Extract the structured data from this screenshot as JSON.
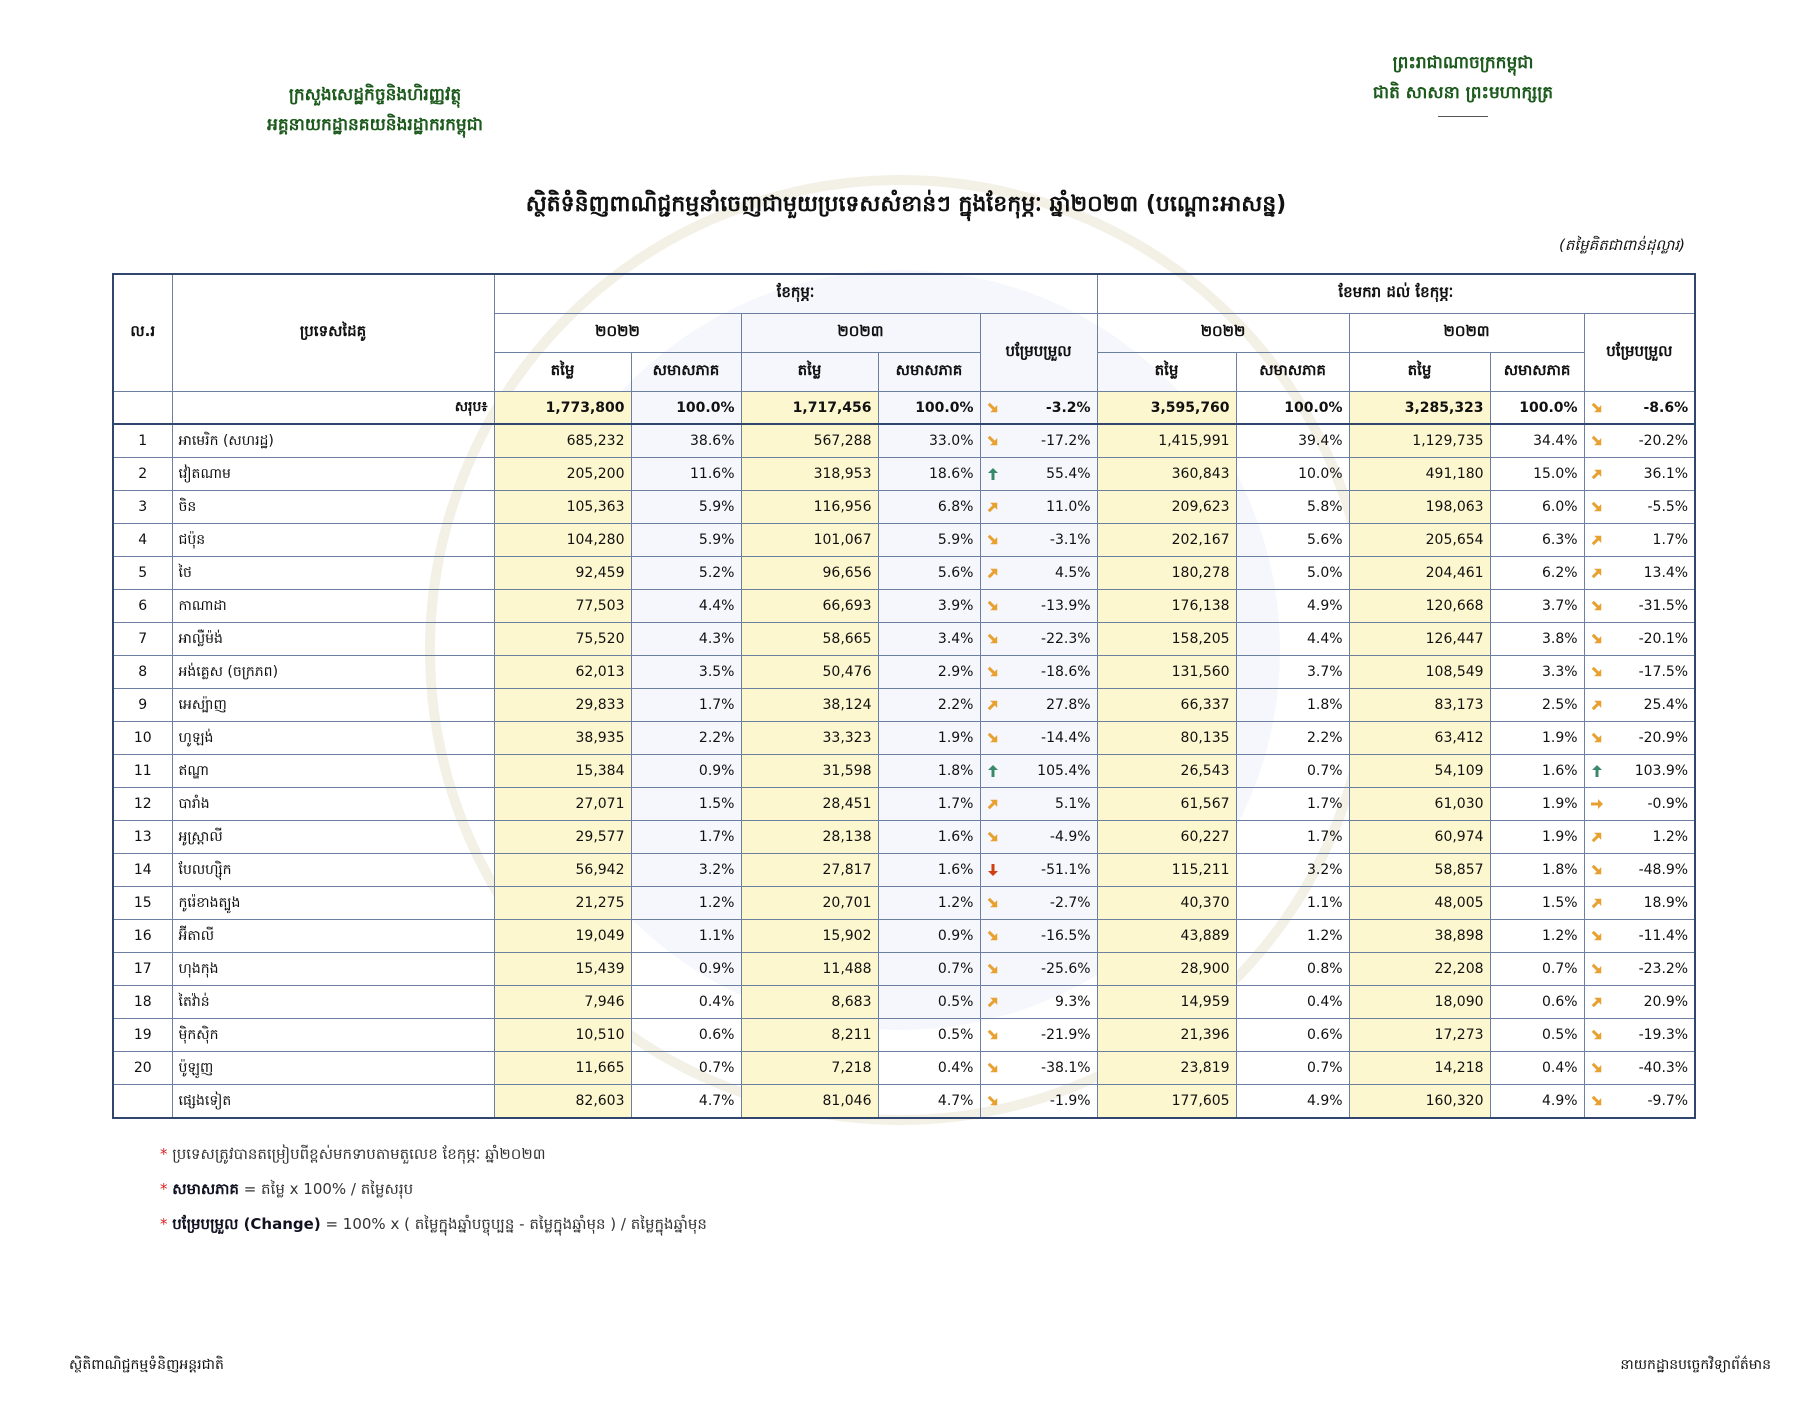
{
  "header": {
    "ministry": [
      "ក្រសួងសេដ្ឋកិច្ចនិងហិរញ្ញវត្ថុ",
      "អគ្គនាយកដ្ឋានគយនិងរដ្ឋាករកម្ពុជា"
    ],
    "kingdom": [
      "ព្រះរាជាណាចក្រកម្ពុជា",
      "ជាតិ សាសនា ព្រះមហាក្សត្រ"
    ]
  },
  "title": "ស្ថិតិទំនិញពាណិជ្ជកម្មនាំចេញជាមួយប្រទេសសំខាន់ៗ ក្នុងខែកុម្ភៈ ឆ្នាំ២០២៣ (បណ្ដោះអាសន្ន)",
  "unit": "(តម្លៃគិតជាពាន់ដុល្លារ)",
  "table": {
    "columns": {
      "no": "ល.រ",
      "country": "ប្រទេសដៃគូ",
      "month": "ខែកុម្ភៈ",
      "ytd": "ខែមករា ដល់ ខែកុម្ភៈ",
      "year1": "២០២២",
      "year2": "២០២៣",
      "change": "បម្រែបម្រួល",
      "value": "តម្លៃ",
      "share": "សមាសភាគ"
    },
    "total": {
      "label": "សរុប៖",
      "cells": [
        "1,773,800",
        "100.0%",
        "1,717,456",
        "100.0%",
        "-3.2%",
        "3,595,760",
        "100.0%",
        "3,285,323",
        "100.0%",
        "-8.6%"
      ]
    },
    "rows": [
      {
        "no": "1",
        "country": "អាមេរិក (សហរដ្ឋ)",
        "cells": [
          "685,232",
          "38.6%",
          "567,288",
          "33.0%",
          "-17.2%",
          "1,415,991",
          "39.4%",
          "1,129,735",
          "34.4%",
          "-20.2%"
        ]
      },
      {
        "no": "2",
        "country": "វៀតណាម",
        "cells": [
          "205,200",
          "11.6%",
          "318,953",
          "18.6%",
          "55.4%",
          "360,843",
          "10.0%",
          "491,180",
          "15.0%",
          "36.1%"
        ]
      },
      {
        "no": "3",
        "country": "ចិន",
        "cells": [
          "105,363",
          "5.9%",
          "116,956",
          "6.8%",
          "11.0%",
          "209,623",
          "5.8%",
          "198,063",
          "6.0%",
          "-5.5%"
        ]
      },
      {
        "no": "4",
        "country": "ជប៉ុន",
        "cells": [
          "104,280",
          "5.9%",
          "101,067",
          "5.9%",
          "-3.1%",
          "202,167",
          "5.6%",
          "205,654",
          "6.3%",
          "1.7%"
        ]
      },
      {
        "no": "5",
        "country": "ថៃ",
        "cells": [
          "92,459",
          "5.2%",
          "96,656",
          "5.6%",
          "4.5%",
          "180,278",
          "5.0%",
          "204,461",
          "6.2%",
          "13.4%"
        ]
      },
      {
        "no": "6",
        "country": "កាណាដា",
        "cells": [
          "77,503",
          "4.4%",
          "66,693",
          "3.9%",
          "-13.9%",
          "176,138",
          "4.9%",
          "120,668",
          "3.7%",
          "-31.5%"
        ]
      },
      {
        "no": "7",
        "country": "អាល្លឺម៉ង់",
        "cells": [
          "75,520",
          "4.3%",
          "58,665",
          "3.4%",
          "-22.3%",
          "158,205",
          "4.4%",
          "126,447",
          "3.8%",
          "-20.1%"
        ]
      },
      {
        "no": "8",
        "country": "អង់គ្លេស (ចក្រភព)",
        "cells": [
          "62,013",
          "3.5%",
          "50,476",
          "2.9%",
          "-18.6%",
          "131,560",
          "3.7%",
          "108,549",
          "3.3%",
          "-17.5%"
        ]
      },
      {
        "no": "9",
        "country": "អេស្ប៉ាញ",
        "cells": [
          "29,833",
          "1.7%",
          "38,124",
          "2.2%",
          "27.8%",
          "66,337",
          "1.8%",
          "83,173",
          "2.5%",
          "25.4%"
        ]
      },
      {
        "no": "10",
        "country": "ហូឡង់",
        "cells": [
          "38,935",
          "2.2%",
          "33,323",
          "1.9%",
          "-14.4%",
          "80,135",
          "2.2%",
          "63,412",
          "1.9%",
          "-20.9%"
        ]
      },
      {
        "no": "11",
        "country": "ឥណ្ឌា",
        "cells": [
          "15,384",
          "0.9%",
          "31,598",
          "1.8%",
          "105.4%",
          "26,543",
          "0.7%",
          "54,109",
          "1.6%",
          "103.9%"
        ]
      },
      {
        "no": "12",
        "country": "បារាំង",
        "cells": [
          "27,071",
          "1.5%",
          "28,451",
          "1.7%",
          "5.1%",
          "61,567",
          "1.7%",
          "61,030",
          "1.9%",
          "-0.9%"
        ]
      },
      {
        "no": "13",
        "country": "អូស្ត្រាលី",
        "cells": [
          "29,577",
          "1.7%",
          "28,138",
          "1.6%",
          "-4.9%",
          "60,227",
          "1.7%",
          "60,974",
          "1.9%",
          "1.2%"
        ]
      },
      {
        "no": "14",
        "country": "បែលហ្ស៊ិក",
        "cells": [
          "56,942",
          "3.2%",
          "27,817",
          "1.6%",
          "-51.1%",
          "115,211",
          "3.2%",
          "58,857",
          "1.8%",
          "-48.9%"
        ]
      },
      {
        "no": "15",
        "country": "កូរ៉េខាងត្បូង",
        "cells": [
          "21,275",
          "1.2%",
          "20,701",
          "1.2%",
          "-2.7%",
          "40,370",
          "1.1%",
          "48,005",
          "1.5%",
          "18.9%"
        ]
      },
      {
        "no": "16",
        "country": "អ៊ីតាលី",
        "cells": [
          "19,049",
          "1.1%",
          "15,902",
          "0.9%",
          "-16.5%",
          "43,889",
          "1.2%",
          "38,898",
          "1.2%",
          "-11.4%"
        ]
      },
      {
        "no": "17",
        "country": "ហុងកុង",
        "cells": [
          "15,439",
          "0.9%",
          "11,488",
          "0.7%",
          "-25.6%",
          "28,900",
          "0.8%",
          "22,208",
          "0.7%",
          "-23.2%"
        ]
      },
      {
        "no": "18",
        "country": "តៃវ៉ាន់",
        "cells": [
          "7,946",
          "0.4%",
          "8,683",
          "0.5%",
          "9.3%",
          "14,959",
          "0.4%",
          "18,090",
          "0.6%",
          "20.9%"
        ]
      },
      {
        "no": "19",
        "country": "ម៉ិកស៊ិក",
        "cells": [
          "10,510",
          "0.6%",
          "8,211",
          "0.5%",
          "-21.9%",
          "21,396",
          "0.6%",
          "17,273",
          "0.5%",
          "-19.3%"
        ]
      },
      {
        "no": "20",
        "country": "ប៉ូឡូញ",
        "cells": [
          "11,665",
          "0.7%",
          "7,218",
          "0.4%",
          "-38.1%",
          "23,819",
          "0.7%",
          "14,218",
          "0.4%",
          "-40.3%"
        ]
      },
      {
        "country": "ផ្សេងទៀត",
        "cells": [
          "82,603",
          "4.7%",
          "81,046",
          "4.7%",
          "-1.9%",
          "177,605",
          "4.9%",
          "160,320",
          "4.9%",
          "-9.7%"
        ]
      }
    ]
  },
  "note_marker": "*",
  "notes": [
    {
      "text": "ប្រទេសត្រូវបានតម្រៀបពីខ្ពស់មកទាបតាមតួលេខ ខែកុម្ភៈ ឆ្នាំ២០២៣"
    },
    {
      "term": "សមាសភាគ",
      "text": "= តម្លៃ x 100% / តម្លៃសរុប"
    },
    {
      "term": "បម្រែបម្រួល (Change)",
      "text": "= 100% x ( តម្លៃក្នុងឆ្នាំបច្ចុប្បន្ន - តម្លៃក្នុងឆ្នាំមុន ) / តម្លៃក្នុងឆ្នាំមុន"
    }
  ],
  "footer": {
    "left": "ស្ថិតិពាណិជ្ជកម្មទំនិញអន្តរជាតិ",
    "right": "នាយកដ្ឋានបច្ចេកវិទ្យាព័ត៌មាន"
  }
}
